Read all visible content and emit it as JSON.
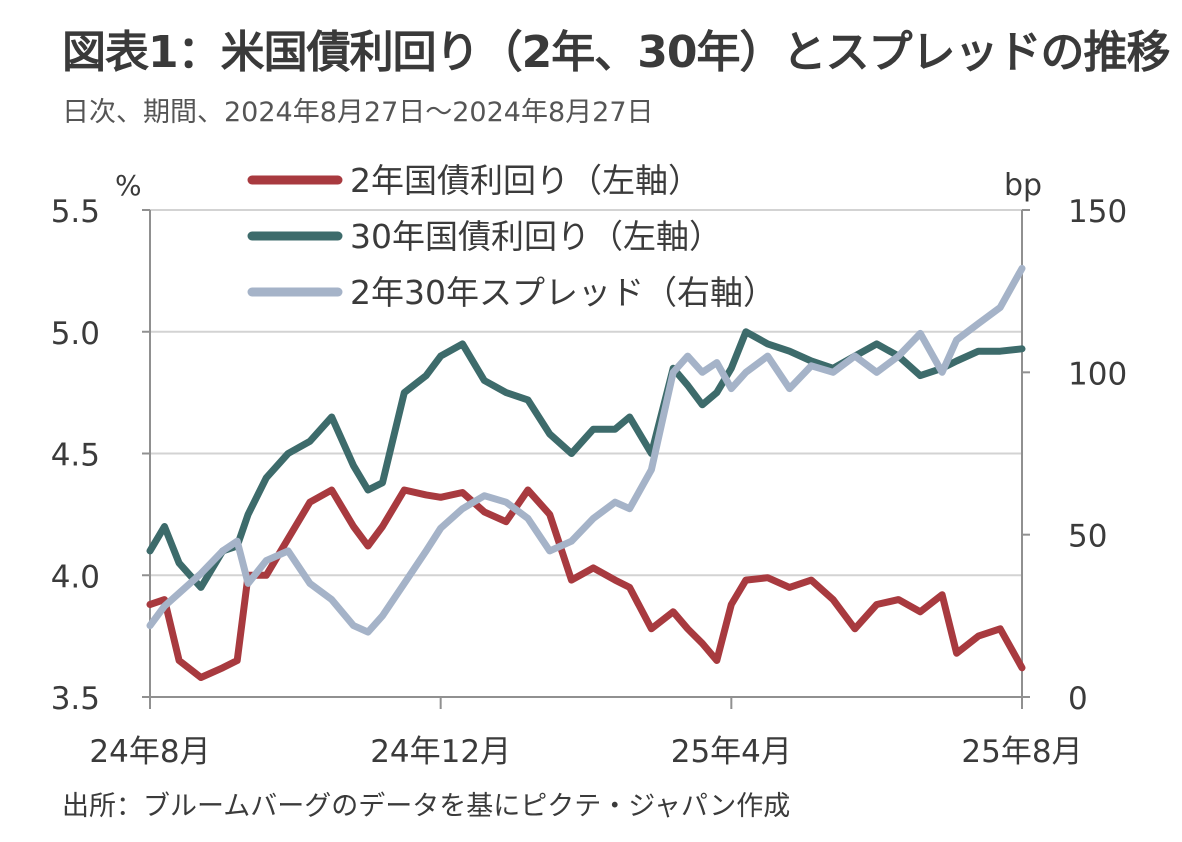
{
  "header": {
    "title": "図表1：米国債利回り（2年、30年）とスプレッドの推移",
    "subtitle": "日次、期間、2024年8月27日～2024年8月27日"
  },
  "footer": {
    "source": "出所：ブルームバーグのデータを基にピクテ・ジャパン作成"
  },
  "chart_data": {
    "type": "line",
    "title": "図表1：米国債利回り（2年、30年）とスプレッドの推移",
    "left_axis": {
      "unit": "%",
      "ylim": [
        3.5,
        5.5
      ],
      "ticks": [
        3.5,
        4.0,
        4.5,
        5.0,
        5.5
      ],
      "tick_labels": [
        "3.5",
        "4.0",
        "4.5",
        "5.0",
        "5.5"
      ]
    },
    "right_axis": {
      "unit": "bp",
      "ylim": [
        0,
        150
      ],
      "ticks": [
        0,
        50,
        100,
        150
      ],
      "tick_labels": [
        "0",
        "50",
        "100",
        "150"
      ]
    },
    "x_range": [
      0,
      12
    ],
    "x_ticks": [
      {
        "x": 0,
        "label": "24年8月"
      },
      {
        "x": 4,
        "label": "24年12月"
      },
      {
        "x": 8,
        "label": "25年4月"
      },
      {
        "x": 12,
        "label": "25年8月"
      }
    ],
    "grid": true,
    "legend_position": "top",
    "series": [
      {
        "name": "2年国債利回り（左軸）",
        "axis": "left",
        "color": "#a83a3f",
        "x": [
          0,
          0.2,
          0.4,
          0.7,
          1.0,
          1.2,
          1.35,
          1.6,
          1.9,
          2.2,
          2.5,
          2.8,
          3.0,
          3.2,
          3.5,
          3.8,
          4.0,
          4.3,
          4.6,
          4.9,
          5.2,
          5.5,
          5.8,
          6.1,
          6.4,
          6.6,
          6.9,
          7.2,
          7.4,
          7.6,
          7.8,
          8.0,
          8.2,
          8.5,
          8.8,
          9.1,
          9.4,
          9.7,
          10.0,
          10.3,
          10.6,
          10.9,
          11.1,
          11.4,
          11.7,
          12.0
        ],
        "values": [
          3.88,
          3.9,
          3.65,
          3.58,
          3.62,
          3.65,
          4.0,
          4.0,
          4.15,
          4.3,
          4.35,
          4.2,
          4.12,
          4.2,
          4.35,
          4.33,
          4.32,
          4.34,
          4.26,
          4.22,
          4.35,
          4.25,
          3.98,
          4.03,
          3.98,
          3.95,
          3.78,
          3.85,
          3.78,
          3.72,
          3.65,
          3.88,
          3.98,
          3.99,
          3.95,
          3.98,
          3.9,
          3.78,
          3.88,
          3.9,
          3.85,
          3.92,
          3.68,
          3.75,
          3.78,
          3.62
        ]
      },
      {
        "name": "30年国債利回り（左軸）",
        "axis": "left",
        "color": "#3d6b6b",
        "x": [
          0,
          0.2,
          0.4,
          0.7,
          1.0,
          1.2,
          1.35,
          1.6,
          1.9,
          2.2,
          2.5,
          2.8,
          3.0,
          3.2,
          3.5,
          3.8,
          4.0,
          4.3,
          4.6,
          4.9,
          5.2,
          5.5,
          5.8,
          6.1,
          6.4,
          6.6,
          6.9,
          7.2,
          7.4,
          7.6,
          7.8,
          8.0,
          8.2,
          8.5,
          8.8,
          9.1,
          9.4,
          9.7,
          10.0,
          10.3,
          10.6,
          10.9,
          11.1,
          11.4,
          11.7,
          12.0
        ],
        "values": [
          4.1,
          4.2,
          4.05,
          3.95,
          4.1,
          4.12,
          4.25,
          4.4,
          4.5,
          4.55,
          4.65,
          4.45,
          4.35,
          4.38,
          4.75,
          4.82,
          4.9,
          4.95,
          4.8,
          4.75,
          4.72,
          4.58,
          4.5,
          4.6,
          4.6,
          4.65,
          4.5,
          4.85,
          4.78,
          4.7,
          4.75,
          4.85,
          5.0,
          4.95,
          4.92,
          4.88,
          4.85,
          4.9,
          4.95,
          4.9,
          4.82,
          4.85,
          4.88,
          4.92,
          4.92,
          4.93
        ]
      },
      {
        "name": "2年30年スプレッド（右軸）",
        "axis": "right",
        "color": "#a5b3c8",
        "x": [
          0,
          0.2,
          0.4,
          0.7,
          1.0,
          1.2,
          1.35,
          1.6,
          1.9,
          2.2,
          2.5,
          2.8,
          3.0,
          3.2,
          3.5,
          3.8,
          4.0,
          4.3,
          4.6,
          4.9,
          5.2,
          5.5,
          5.8,
          6.1,
          6.4,
          6.6,
          6.9,
          7.2,
          7.4,
          7.6,
          7.8,
          8.0,
          8.2,
          8.5,
          8.8,
          9.1,
          9.4,
          9.7,
          10.0,
          10.3,
          10.6,
          10.9,
          11.1,
          11.4,
          11.7,
          12.0
        ],
        "values": [
          22,
          28,
          32,
          38,
          45,
          48,
          35,
          42,
          45,
          35,
          30,
          22,
          20,
          25,
          35,
          45,
          52,
          58,
          62,
          60,
          55,
          45,
          48,
          55,
          60,
          58,
          70,
          100,
          105,
          100,
          103,
          95,
          100,
          105,
          95,
          102,
          100,
          105,
          100,
          105,
          112,
          100,
          110,
          115,
          120,
          132
        ]
      }
    ]
  }
}
